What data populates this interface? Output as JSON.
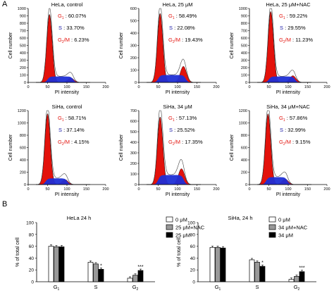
{
  "panels": {
    "a": "A",
    "b": "B"
  },
  "histograms": {
    "ylabel": "Cell number",
    "xlabel": "PI intensity",
    "colors": {
      "g1": "#e3120b",
      "s": "#1f2fd6",
      "g2": "#e3120b",
      "text_s": "#1a1aa6",
      "fit": "#444444",
      "axis": "#000000"
    },
    "plots": [
      {
        "title": "HeLa, control",
        "g1": "60.07%",
        "s": "33.70%",
        "g2m": "6.23%",
        "ymax": 1000,
        "yticks": [
          0,
          100,
          200,
          300,
          400,
          500,
          600,
          700,
          800,
          900,
          1000
        ],
        "g1_peak": 55,
        "g1_height": 920,
        "g2_peak": 110,
        "g2_height": 60,
        "s_level": 80
      },
      {
        "title": "HeLa, 25 μM",
        "g1": "58.49%",
        "s": "22.08%",
        "g2m": "19.43%",
        "ymax": 600,
        "yticks": [
          0,
          100,
          200,
          300,
          400,
          500,
          600
        ],
        "g1_peak": 55,
        "g1_height": 560,
        "g2_peak": 115,
        "g2_height": 130,
        "s_level": 60
      },
      {
        "title": "HeLa, 25 μM+NAC",
        "g1": "59.22%",
        "s": "29.55%",
        "g2m": "11.23%",
        "ymax": 1000,
        "yticks": [
          0,
          100,
          200,
          300,
          400,
          500,
          600,
          700,
          800,
          900,
          1000
        ],
        "g1_peak": 55,
        "g1_height": 960,
        "g2_peak": 112,
        "g2_height": 90,
        "s_level": 80
      },
      {
        "title": "SiHa, control",
        "g1": "58.71%",
        "s": "37.14%",
        "g2m": "4.15%",
        "ymax": 1200,
        "yticks": [
          0,
          200,
          400,
          600,
          800,
          1000,
          1200
        ],
        "g1_peak": 50,
        "g1_height": 1150,
        "g2_peak": 95,
        "g2_height": 80,
        "s_level": 100
      },
      {
        "title": "SiHa, 34 μM",
        "g1": "57.13%",
        "s": "25.52%",
        "g2m": "17.35%",
        "ymax": 700,
        "yticks": [
          0,
          100,
          200,
          300,
          400,
          500,
          600,
          700
        ],
        "g1_peak": 55,
        "g1_height": 640,
        "g2_peak": 110,
        "g2_height": 150,
        "s_level": 90
      },
      {
        "title": "SiHa, 34 μM+NAC",
        "g1": "57.86%",
        "s": "32.99%",
        "g2m": "9.15%",
        "ymax": 1200,
        "yticks": [
          0,
          200,
          400,
          600,
          800,
          1000,
          1200
        ],
        "g1_peak": 48,
        "g1_height": 1150,
        "g2_peak": 92,
        "g2_height": 90,
        "s_level": 120
      }
    ],
    "xticks": [
      0,
      50,
      100,
      150,
      200
    ]
  },
  "chart_data": [
    {
      "type": "bar",
      "title": "HeLa 24 h",
      "ylabel": "% of total cell",
      "categories": [
        "G1",
        "S",
        "G2"
      ],
      "ylim": [
        0,
        100
      ],
      "yticks": [
        0,
        20,
        40,
        60,
        80,
        100
      ],
      "series": [
        {
          "name": "0 μM",
          "values": [
            60,
            33,
            6
          ],
          "color": "#ffffff"
        },
        {
          "name": "25 μM+NAC",
          "values": [
            59,
            30,
            11
          ],
          "color": "#999999"
        },
        {
          "name": "25 μM",
          "values": [
            59,
            21,
            19
          ],
          "color": "#000000"
        }
      ],
      "annotations": [
        {
          "category": "S",
          "series": "25 μM",
          "text": "*"
        },
        {
          "category": "G2",
          "series": "25 μM",
          "text": "***"
        }
      ]
    },
    {
      "type": "bar",
      "title": "SiHa, 24 h",
      "ylabel": "% of total cell",
      "categories": [
        "G1",
        "S",
        "G2"
      ],
      "ylim": [
        0,
        100
      ],
      "yticks": [
        0,
        20,
        40,
        60,
        80,
        100
      ],
      "series": [
        {
          "name": "0 μM",
          "values": [
            58,
            37,
            4
          ],
          "color": "#ffffff"
        },
        {
          "name": "34 μM+NAC",
          "values": [
            58,
            33,
            9
          ],
          "color": "#999999"
        },
        {
          "name": "34 μM",
          "values": [
            57,
            26,
            17
          ],
          "color": "#000000"
        }
      ],
      "annotations": [
        {
          "category": "S",
          "series": "34 μM",
          "text": "*"
        },
        {
          "category": "G2",
          "series": "34 μM",
          "text": "***"
        }
      ]
    }
  ]
}
